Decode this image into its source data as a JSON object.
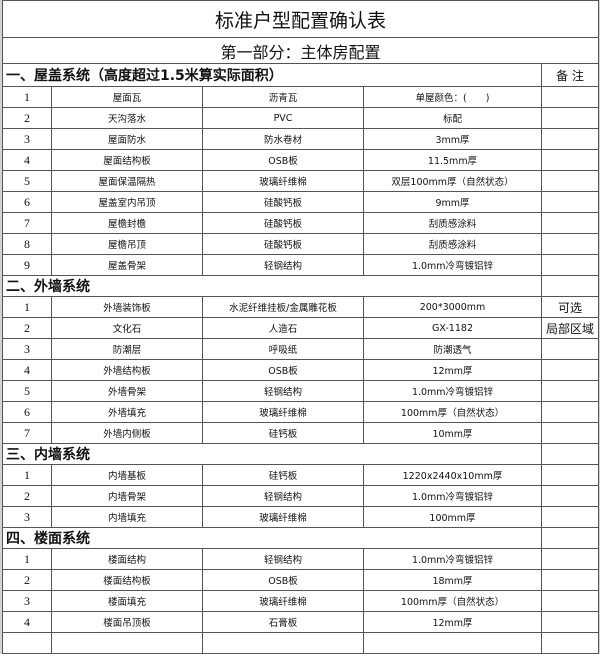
{
  "title": "标准户型配置确认表",
  "part": "第一部分：主体房配置",
  "remark_header": "备 注",
  "sections": [
    {
      "heading": "一、屋盖系统（高度超过1.5米算实际面积）",
      "rows": [
        {
          "no": "1",
          "item": "屋面瓦",
          "material": "沥青瓦",
          "spec": "单屋颜色：(　　)",
          "note": ""
        },
        {
          "no": "2",
          "item": "天沟落水",
          "material": "PVC",
          "spec": "标配",
          "note": ""
        },
        {
          "no": "3",
          "item": "屋面防水",
          "material": "防水卷材",
          "spec": "3mm厚",
          "note": ""
        },
        {
          "no": "4",
          "item": "屋面结构板",
          "material": "OSB板",
          "spec": "11.5mm厚",
          "note": ""
        },
        {
          "no": "5",
          "item": "屋面保温隔热",
          "material": "玻璃纤维棉",
          "spec": "双层100mm厚（自然状态）",
          "note": ""
        },
        {
          "no": "6",
          "item": "屋盖室内吊顶",
          "material": "硅酸钙板",
          "spec": "9mm厚",
          "note": ""
        },
        {
          "no": "7",
          "item": "屋檐封檐",
          "material": "硅酸钙板",
          "spec": "刮质感涂料",
          "note": ""
        },
        {
          "no": "8",
          "item": "屋檐吊顶",
          "material": "硅酸钙板",
          "spec": "刮质感涂料",
          "note": ""
        },
        {
          "no": "9",
          "item": "屋盖骨架",
          "material": "轻钢结构",
          "spec": "1.0mm冷弯镀铝锌",
          "note": ""
        }
      ]
    },
    {
      "heading": "二、外墙系统",
      "rows": [
        {
          "no": "1",
          "item": "外墙装饰板",
          "material": "水泥纤维挂板/金属雕花板",
          "spec": "200*3000mm",
          "note": "可选"
        },
        {
          "no": "2",
          "item": "文化石",
          "material": "人造石",
          "spec": "GX-1182",
          "note": "局部区域"
        },
        {
          "no": "3",
          "item": "防潮层",
          "material": "呼吸纸",
          "spec": "防潮透气",
          "note": ""
        },
        {
          "no": "4",
          "item": "外墙结构板",
          "material": "OSB板",
          "spec": "12mm厚",
          "note": ""
        },
        {
          "no": "5",
          "item": "外墙骨架",
          "material": "轻钢结构",
          "spec": "1.0mm冷弯镀铝锌",
          "note": ""
        },
        {
          "no": "6",
          "item": "外墙填充",
          "material": "玻璃纤维棉",
          "spec": "100mm厚（自然状态）",
          "note": ""
        },
        {
          "no": "7",
          "item": "外墙内侧板",
          "material": "硅钙板",
          "spec": "10mm厚",
          "note": ""
        }
      ]
    },
    {
      "heading": "三、内墙系统",
      "rows": [
        {
          "no": "1",
          "item": "内墙基板",
          "material": "硅钙板",
          "spec": "1220x2440x10mm厚",
          "note": ""
        },
        {
          "no": "2",
          "item": "内墙骨架",
          "material": "轻钢结构",
          "spec": "1.0mm冷弯镀铝锌",
          "note": ""
        },
        {
          "no": "3",
          "item": "内墙填充",
          "material": "玻璃纤维棉",
          "spec": "100mm厚",
          "note": ""
        }
      ]
    },
    {
      "heading": "四、楼面系统",
      "rows": [
        {
          "no": "1",
          "item": "楼面结构",
          "material": "轻钢结构",
          "spec": "1.0mm冷弯镀铝锌",
          "note": ""
        },
        {
          "no": "2",
          "item": "楼面结构板",
          "material": "OSB板",
          "spec": "18mm厚",
          "note": ""
        },
        {
          "no": "3",
          "item": "楼面填充",
          "material": "玻璃纤维棉",
          "spec": "100mm厚（自然状态）",
          "note": ""
        },
        {
          "no": "4",
          "item": "楼面吊顶板",
          "material": "石膏板",
          "spec": "12mm厚",
          "note": ""
        }
      ]
    }
  ]
}
